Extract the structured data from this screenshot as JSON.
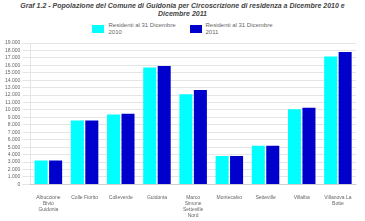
{
  "chart_data": {
    "type": "bar",
    "title": "Graf 1.2 - Popolazione del Comune di Guidonia per Circoscrizione di residenza a Dicembre 2010 e Dicembre 2011",
    "categories": [
      "Albuccione\nBivio\nGuidonia",
      "Colle Fiorito",
      "Colleverde",
      "Guidonia",
      "Marco\nSimone\nSetteville\nNord",
      "Montecalvo",
      "Setteville",
      "Villalba",
      "Villanova La\nBotte"
    ],
    "series": [
      {
        "name": "Residenti al 31 Dicembre\n2010",
        "color": "#00FFFF",
        "values": [
          3200,
          8600,
          9400,
          15700,
          12100,
          3800,
          5200,
          10100,
          17200
        ]
      },
      {
        "name": "Residenti al 31 Dicembre\n2011",
        "color": "#0000CD",
        "values": [
          3200,
          8600,
          9500,
          15900,
          12700,
          3800,
          5200,
          10300,
          17800
        ]
      }
    ],
    "ylim": [
      0,
      19000
    ],
    "yticks": [
      0,
      {
        "value": 1000,
        "label": "1.000"
      },
      {
        "value": 2000,
        "label": "2.000"
      },
      {
        "value": 3000,
        "label": "3.000"
      },
      {
        "value": 4000,
        "label": "4.000"
      },
      {
        "value": 5000,
        "label": "5.000"
      },
      {
        "value": 6000,
        "label": "6.000"
      },
      {
        "value": 7000,
        "label": "7.000"
      },
      {
        "value": 8000,
        "label": "8.000"
      },
      {
        "value": 9000,
        "label": "9.000"
      },
      {
        "value": 10000,
        "label": "10.000"
      },
      {
        "value": 11000,
        "label": "11.000"
      },
      {
        "value": 12000,
        "label": "12.000"
      },
      {
        "value": 13000,
        "label": "13.000"
      },
      {
        "value": 14000,
        "label": "14.000"
      },
      {
        "value": 15000,
        "label": "15.000"
      },
      {
        "value": 16000,
        "label": "16.000"
      },
      {
        "value": 17000,
        "label": "17.000"
      },
      {
        "value": 18000,
        "label": "18.000"
      },
      {
        "value": 19000,
        "label": "19.000"
      }
    ],
    "grid": true,
    "legend": "top"
  }
}
